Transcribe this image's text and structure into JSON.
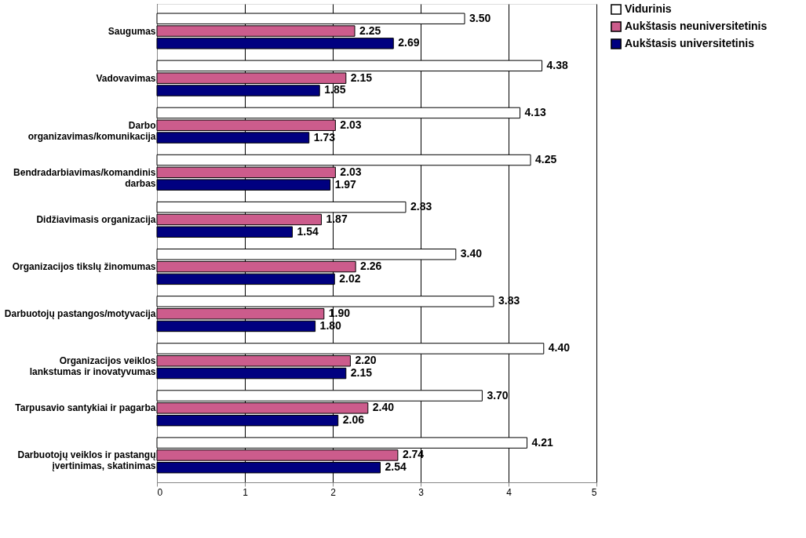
{
  "chart_data": {
    "type": "bar",
    "orientation": "horizontal",
    "categories": [
      "Saugumas",
      "Vadovavimas",
      "Darbo organizavimas/komunikacija",
      "Bendradarbiavimas/komandinis darbas",
      "Didžiavimasis organizacija",
      "Organizacijos tikslų žinomumas",
      "Darbuotojų pastangos/motyvacija",
      "Organizacijos veiklos lankstumas ir inovatyvumas",
      "Tarpusavio santykiai ir pagarba",
      "Darbuotojų veiklos ir pastangų įvertinimas, skatinimas"
    ],
    "series": [
      {
        "name": "Vidurinis",
        "color": "#ffffff",
        "values": [
          3.5,
          4.38,
          4.13,
          4.25,
          2.83,
          3.4,
          3.83,
          4.4,
          3.7,
          4.21
        ],
        "value_labels": [
          "3.50",
          "4.38",
          "4.13",
          "4.25",
          "2.83",
          "3.40",
          "3.83",
          "4.40",
          "3.70",
          "4.21"
        ]
      },
      {
        "name": "Aukštasis neuniversitetinis",
        "color": "#cc5c8c",
        "values": [
          2.25,
          2.15,
          2.03,
          2.03,
          1.87,
          2.26,
          1.9,
          2.2,
          2.4,
          2.74
        ],
        "value_labels": [
          "2.25",
          "2.15",
          "2.03",
          "2.03",
          "1.87",
          "2.26",
          "1.90",
          "2.20",
          "2.40",
          "2.74"
        ]
      },
      {
        "name": "Aukštasis universitetinis",
        "color": "#000080",
        "values": [
          2.69,
          1.85,
          1.73,
          1.97,
          1.54,
          2.02,
          1.8,
          2.15,
          2.06,
          2.54
        ],
        "value_labels": [
          "2.69",
          "1.85",
          "1.73",
          "1.97",
          "1.54",
          "2.02",
          "1.80",
          "2.15",
          "2.06",
          "2.54"
        ]
      }
    ],
    "xlim": [
      0,
      5
    ],
    "xticks": [
      0,
      1,
      2,
      3,
      4,
      5
    ],
    "grid": "x",
    "legend": "right"
  }
}
